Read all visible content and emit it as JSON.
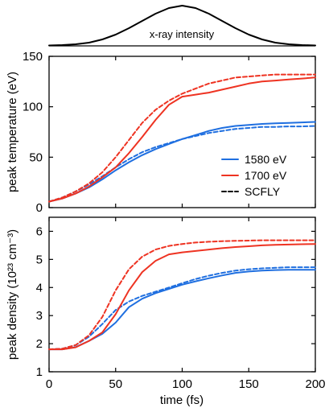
{
  "colors": {
    "blue": "#1f6fe0",
    "red": "#ee3322",
    "black": "#000000"
  },
  "chart_data": [
    {
      "id": "pulse",
      "type": "line",
      "title": "",
      "label": "x-ray intensity",
      "xlim": [
        0,
        200
      ],
      "ylim": [
        0,
        1
      ],
      "series": [
        {
          "color": "black",
          "dash": false,
          "x": [
            0,
            10,
            20,
            30,
            40,
            50,
            60,
            70,
            80,
            90,
            100,
            110,
            120,
            130,
            140,
            150,
            160,
            170,
            180,
            190,
            200
          ],
          "y": [
            0.01,
            0.02,
            0.04,
            0.08,
            0.16,
            0.28,
            0.44,
            0.62,
            0.8,
            0.94,
            1.0,
            0.94,
            0.8,
            0.62,
            0.44,
            0.28,
            0.16,
            0.08,
            0.04,
            0.02,
            0.01
          ]
        }
      ]
    },
    {
      "id": "temperature",
      "type": "line",
      "title": "",
      "xlabel": "",
      "ylabel": "peak temperature (eV)",
      "xlim": [
        0,
        200
      ],
      "ylim": [
        0,
        150
      ],
      "yticks": [
        "0",
        "50",
        "100",
        "150"
      ],
      "ytick_values": [
        0,
        50,
        100,
        150
      ],
      "legend": {
        "position": "right",
        "entries": [
          {
            "label": "1580 eV",
            "color": "blue",
            "dash": false
          },
          {
            "label": "1700 eV",
            "color": "red",
            "dash": false
          },
          {
            "label": "SCFLY",
            "color": "black",
            "dash": true
          }
        ]
      },
      "series": [
        {
          "name": "1580 eV",
          "color": "blue",
          "dash": false,
          "x": [
            0,
            10,
            20,
            30,
            40,
            50,
            60,
            70,
            80,
            90,
            100,
            110,
            120,
            130,
            140,
            150,
            160,
            170,
            180,
            190,
            200
          ],
          "y": [
            6,
            9,
            14,
            20,
            28,
            37,
            45,
            52,
            58,
            63,
            68,
            72,
            76,
            79,
            81,
            82,
            83,
            83.5,
            84,
            84.5,
            85
          ]
        },
        {
          "name": "1580 eV SCFLY",
          "color": "blue",
          "dash": true,
          "x": [
            0,
            10,
            20,
            30,
            40,
            50,
            60,
            70,
            80,
            90,
            100,
            110,
            120,
            130,
            140,
            150,
            160,
            170,
            180,
            190,
            200
          ],
          "y": [
            6,
            10,
            16,
            23,
            31,
            40,
            48,
            55,
            60,
            64,
            68,
            71,
            74,
            76,
            78,
            79,
            80,
            80,
            80.5,
            80.5,
            81
          ]
        },
        {
          "name": "1700 eV",
          "color": "red",
          "dash": false,
          "x": [
            0,
            10,
            20,
            30,
            40,
            50,
            60,
            70,
            80,
            90,
            100,
            110,
            120,
            130,
            140,
            150,
            160,
            170,
            180,
            190,
            200
          ],
          "y": [
            6,
            9,
            14,
            21,
            30,
            40,
            54,
            70,
            87,
            102,
            110,
            112,
            114,
            117,
            120,
            123,
            125,
            126,
            127,
            128,
            129
          ]
        },
        {
          "name": "1700 eV SCFLY",
          "color": "red",
          "dash": true,
          "x": [
            0,
            10,
            20,
            30,
            40,
            50,
            60,
            70,
            80,
            90,
            100,
            110,
            120,
            130,
            140,
            150,
            160,
            170,
            180,
            190,
            200
          ],
          "y": [
            6,
            10,
            16,
            24,
            35,
            50,
            67,
            84,
            97,
            106,
            113,
            118,
            123,
            126,
            129,
            130,
            131,
            132,
            132,
            132,
            132
          ]
        }
      ]
    },
    {
      "id": "density",
      "type": "line",
      "title": "",
      "xlabel": "time (fs)",
      "ylabel": "peak density (10²³ cm⁻³)",
      "xlim": [
        0,
        200
      ],
      "ylim": [
        1,
        6.5
      ],
      "xticks": [
        "0",
        "50",
        "100",
        "150",
        "200"
      ],
      "xtick_values": [
        0,
        50,
        100,
        150,
        200
      ],
      "yticks": [
        "1",
        "2",
        "3",
        "4",
        "5",
        "6"
      ],
      "ytick_values": [
        1,
        2,
        3,
        4,
        5,
        6
      ],
      "series": [
        {
          "name": "1580 eV",
          "color": "blue",
          "dash": false,
          "x": [
            0,
            10,
            20,
            30,
            40,
            50,
            60,
            70,
            80,
            90,
            100,
            110,
            120,
            130,
            140,
            150,
            160,
            170,
            180,
            190,
            200
          ],
          "y": [
            1.8,
            1.8,
            1.88,
            2.1,
            2.35,
            2.75,
            3.3,
            3.6,
            3.8,
            3.95,
            4.1,
            4.22,
            4.33,
            4.43,
            4.52,
            4.57,
            4.6,
            4.62,
            4.63,
            4.63,
            4.63
          ]
        },
        {
          "name": "1580 eV SCFLY",
          "color": "blue",
          "dash": true,
          "x": [
            0,
            10,
            20,
            30,
            40,
            50,
            60,
            70,
            80,
            90,
            100,
            110,
            120,
            130,
            140,
            150,
            160,
            170,
            180,
            190,
            200
          ],
          "y": [
            1.8,
            1.82,
            1.95,
            2.25,
            2.7,
            3.2,
            3.5,
            3.7,
            3.85,
            4.0,
            4.15,
            4.3,
            4.42,
            4.52,
            4.6,
            4.65,
            4.68,
            4.7,
            4.72,
            4.72,
            4.72
          ]
        },
        {
          "name": "1700 eV",
          "color": "red",
          "dash": false,
          "x": [
            0,
            10,
            20,
            30,
            40,
            50,
            60,
            70,
            80,
            90,
            100,
            110,
            120,
            130,
            140,
            150,
            160,
            170,
            180,
            190,
            200
          ],
          "y": [
            1.8,
            1.8,
            1.87,
            2.1,
            2.4,
            3.05,
            3.9,
            4.55,
            4.95,
            5.18,
            5.25,
            5.3,
            5.35,
            5.4,
            5.44,
            5.47,
            5.5,
            5.52,
            5.53,
            5.54,
            5.55
          ]
        },
        {
          "name": "1700 eV SCFLY",
          "color": "red",
          "dash": true,
          "x": [
            0,
            10,
            20,
            30,
            40,
            50,
            60,
            70,
            80,
            90,
            100,
            110,
            120,
            130,
            140,
            150,
            160,
            170,
            180,
            190,
            200
          ],
          "y": [
            1.8,
            1.82,
            1.95,
            2.3,
            2.95,
            3.9,
            4.65,
            5.1,
            5.35,
            5.48,
            5.55,
            5.6,
            5.63,
            5.65,
            5.66,
            5.67,
            5.68,
            5.68,
            5.68,
            5.68,
            5.68
          ]
        }
      ]
    }
  ]
}
